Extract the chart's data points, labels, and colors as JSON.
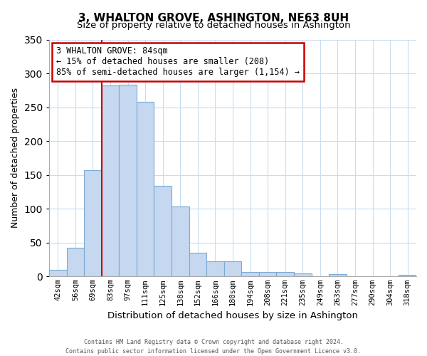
{
  "title": "3, WHALTON GROVE, ASHINGTON, NE63 8UH",
  "subtitle": "Size of property relative to detached houses in Ashington",
  "xlabel": "Distribution of detached houses by size in Ashington",
  "ylabel": "Number of detached properties",
  "bin_labels": [
    "42sqm",
    "56sqm",
    "69sqm",
    "83sqm",
    "97sqm",
    "111sqm",
    "125sqm",
    "138sqm",
    "152sqm",
    "166sqm",
    "180sqm",
    "194sqm",
    "208sqm",
    "221sqm",
    "235sqm",
    "249sqm",
    "263sqm",
    "277sqm",
    "290sqm",
    "304sqm",
    "318sqm"
  ],
  "bar_heights": [
    10,
    42,
    157,
    282,
    283,
    258,
    134,
    103,
    35,
    22,
    23,
    7,
    7,
    7,
    5,
    0,
    4,
    0,
    0,
    0,
    2
  ],
  "bar_color": "#c5d8f0",
  "bar_edge_color": "#7aaad4",
  "property_line_bin_index": 3,
  "annotation_title": "3 WHALTON GROVE: 84sqm",
  "annotation_line1": "← 15% of detached houses are smaller (208)",
  "annotation_line2": "85% of semi-detached houses are larger (1,154) →",
  "annotation_box_color": "#ffffff",
  "annotation_box_edge": "#cc0000",
  "property_line_color": "#cc0000",
  "ylim": [
    0,
    350
  ],
  "yticks": [
    0,
    50,
    100,
    150,
    200,
    250,
    300,
    350
  ],
  "footer1": "Contains HM Land Registry data © Crown copyright and database right 2024.",
  "footer2": "Contains public sector information licensed under the Open Government Licence v3.0.",
  "grid_color": "#c8ddf0",
  "title_fontsize": 11,
  "subtitle_fontsize": 10
}
